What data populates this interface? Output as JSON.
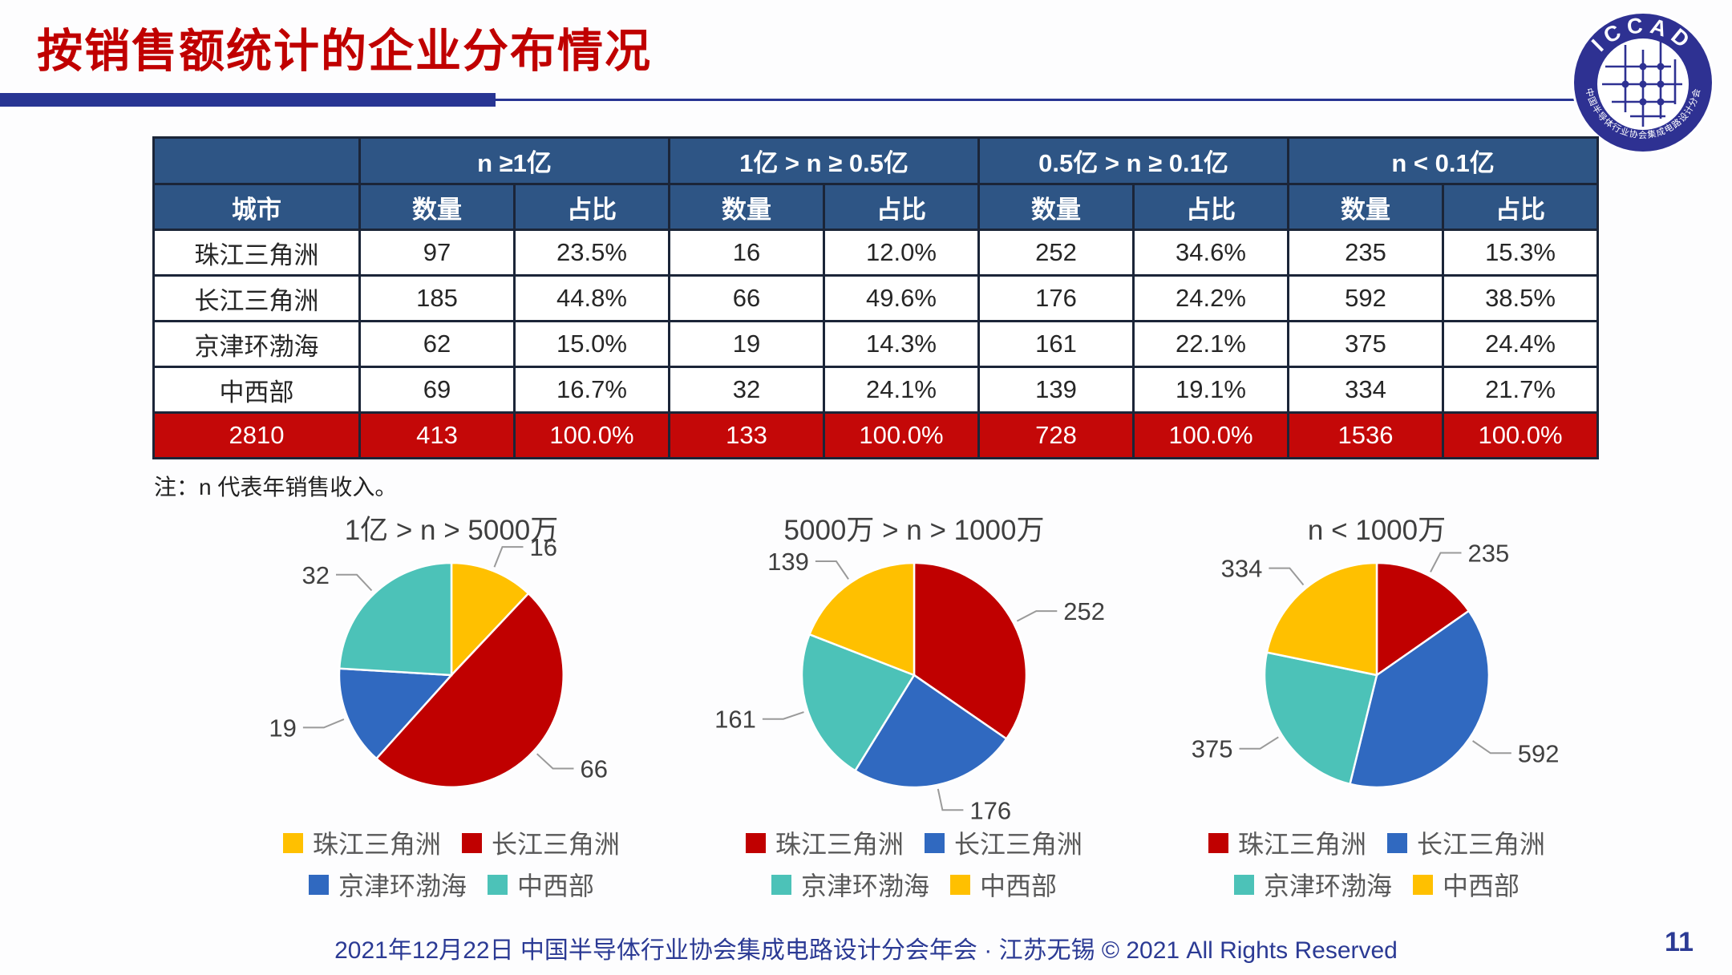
{
  "page": {
    "title": "按销售额统计的企业分布情况",
    "note": "注：n 代表年销售收入。",
    "footer": "2021年12月22日 中国半导体行业协会集成电路设计分会年会 · 江苏无锡 © 2021 All Rights Reserved",
    "page_number": "11"
  },
  "logo": {
    "arc_top_text": "ICCAD",
    "arc_bottom_text": "中国半导体行业协会集成电路设计分会"
  },
  "colors": {
    "title-red": "#C00000",
    "header-blue": "#2E5585",
    "total-red": "#C40808",
    "divider-navy": "#283593",
    "footer-navy": "#2B3A94",
    "logo-navy": "#2E3192",
    "border-dark": "#1B2538"
  },
  "table": {
    "group_headers": [
      "n ≥1亿",
      "1亿 > n ≥ 0.5亿",
      "0.5亿 > n ≥ 0.1亿",
      "n < 0.1亿"
    ],
    "sub_headers": {
      "city": "城市",
      "count": "数量",
      "share": "占比"
    },
    "rows": [
      {
        "city": "珠江三角洲",
        "cells": [
          "97",
          "23.5%",
          "16",
          "12.0%",
          "252",
          "34.6%",
          "235",
          "15.3%"
        ]
      },
      {
        "city": "长江三角洲",
        "cells": [
          "185",
          "44.8%",
          "66",
          "49.6%",
          "176",
          "24.2%",
          "592",
          "38.5%"
        ]
      },
      {
        "city": "京津环渤海",
        "cells": [
          "62",
          "15.0%",
          "19",
          "14.3%",
          "161",
          "22.1%",
          "375",
          "24.4%"
        ]
      },
      {
        "city": "中西部",
        "cells": [
          "69",
          "16.7%",
          "32",
          "24.1%",
          "139",
          "19.1%",
          "334",
          "21.7%"
        ]
      }
    ],
    "total_row": {
      "city": "2810",
      "cells": [
        "413",
        "100.0%",
        "133",
        "100.0%",
        "728",
        "100.0%",
        "1536",
        "100.0%"
      ]
    }
  },
  "chart_data": [
    {
      "type": "pie",
      "title": "1亿 > n > 5000万",
      "categories": [
        "珠江三角洲",
        "长江三角洲",
        "京津环渤海",
        "中西部"
      ],
      "values": [
        16,
        66,
        19,
        32
      ],
      "total": 133,
      "colors": [
        "#FFC000",
        "#C00000",
        "#3069C0",
        "#4CC2B8"
      ],
      "legend_position": "bottom"
    },
    {
      "type": "pie",
      "title": "5000万 > n > 1000万",
      "categories": [
        "珠江三角洲",
        "长江三角洲",
        "京津环渤海",
        "中西部"
      ],
      "values": [
        252,
        176,
        161,
        139
      ],
      "total": 728,
      "colors": [
        "#C00000",
        "#3069C0",
        "#4CC2B8",
        "#FFC000"
      ],
      "legend_position": "bottom"
    },
    {
      "type": "pie",
      "title": "n < 1000万",
      "categories": [
        "珠江三角洲",
        "长江三角洲",
        "京津环渤海",
        "中西部"
      ],
      "values": [
        235,
        592,
        375,
        334
      ],
      "total": 1536,
      "colors": [
        "#C00000",
        "#3069C0",
        "#4CC2B8",
        "#FFC000"
      ],
      "legend_position": "bottom"
    }
  ]
}
